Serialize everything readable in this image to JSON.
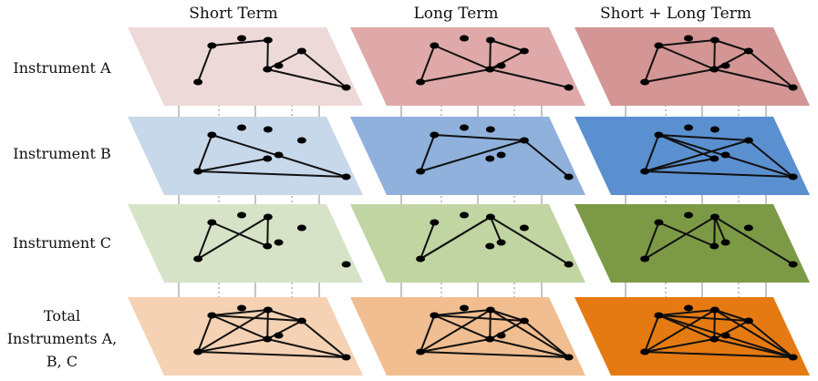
{
  "columns": [
    {
      "label": "Short Term"
    },
    {
      "label": "Long Term"
    },
    {
      "label": "Short + Long Term"
    }
  ],
  "rows": [
    {
      "label_lines": [
        "Instrument A"
      ]
    },
    {
      "label_lines": [
        "Instrument B"
      ]
    },
    {
      "label_lines": [
        "Instrument C"
      ]
    },
    {
      "label_lines": [
        "Total",
        "Instruments A,",
        "B, C"
      ]
    }
  ],
  "colors": {
    "row_a": [
      "#eed9d9",
      "#e0a9a9",
      "#d49595"
    ],
    "row_b": [
      "#c8d8eb",
      "#8fb1dc",
      "#5b90d0"
    ],
    "row_c": [
      "#d7e3c6",
      "#c0d5a2",
      "#7c9a45"
    ],
    "row_total": [
      "#f5d2b4",
      "#f1be91",
      "#e57a12"
    ],
    "edge": "#111111",
    "node": "#000000",
    "connector": "#888888"
  },
  "network": {
    "nodes": [
      "n1",
      "n2",
      "n3",
      "n4",
      "n5",
      "n6",
      "n7",
      "n8"
    ],
    "edges_by_panel": [
      [
        [
          [
            "n1",
            "n2"
          ],
          [
            "n2",
            "n5"
          ],
          [
            "n5",
            "n4"
          ],
          [
            "n4",
            "n6"
          ],
          [
            "n5",
            "n6"
          ],
          [
            "n1",
            "n3"
          ]
        ],
        [
          [
            "n2",
            "n4"
          ],
          [
            "n2",
            "n5"
          ],
          [
            "n5",
            "n4"
          ],
          [
            "n5",
            "n8"
          ],
          [
            "n5",
            "n6"
          ],
          [
            "n1",
            "n3"
          ],
          [
            "n3",
            "n5"
          ],
          [
            "n1",
            "n5"
          ]
        ],
        [
          [
            "n1",
            "n2"
          ],
          [
            "n2",
            "n4"
          ],
          [
            "n2",
            "n5"
          ],
          [
            "n5",
            "n4"
          ],
          [
            "n4",
            "n6"
          ],
          [
            "n5",
            "n6"
          ],
          [
            "n1",
            "n3"
          ],
          [
            "n3",
            "n5"
          ],
          [
            "n1",
            "n5"
          ],
          [
            "n5",
            "n8"
          ]
        ]
      ],
      [
        [
          [
            "n1",
            "n3"
          ],
          [
            "n3",
            "n5"
          ],
          [
            "n3",
            "n6"
          ],
          [
            "n1",
            "n6"
          ]
        ],
        [
          [
            "n1",
            "n4"
          ],
          [
            "n1",
            "n3"
          ],
          [
            "n3",
            "n4"
          ],
          [
            "n4",
            "n6"
          ]
        ],
        [
          [
            "n1",
            "n4"
          ],
          [
            "n1",
            "n3"
          ],
          [
            "n3",
            "n4"
          ],
          [
            "n3",
            "n5"
          ],
          [
            "n3",
            "n6"
          ],
          [
            "n1",
            "n6"
          ],
          [
            "n4",
            "n6"
          ],
          [
            "n1",
            "n5"
          ]
        ]
      ],
      [
        [
          [
            "n1",
            "n3"
          ],
          [
            "n1",
            "n5"
          ],
          [
            "n3",
            "n2"
          ],
          [
            "n2",
            "n5"
          ]
        ],
        [
          [
            "n1",
            "n3"
          ],
          [
            "n3",
            "n2"
          ],
          [
            "n2",
            "n6"
          ],
          [
            "n2",
            "n8"
          ],
          [
            "n3",
            "n2"
          ]
        ],
        [
          [
            "n1",
            "n3"
          ],
          [
            "n3",
            "n2"
          ],
          [
            "n2",
            "n5"
          ],
          [
            "n1",
            "n5"
          ],
          [
            "n2",
            "n6"
          ],
          [
            "n2",
            "n8"
          ]
        ]
      ],
      [
        [
          [
            "n1",
            "n2"
          ],
          [
            "n1",
            "n3"
          ],
          [
            "n1",
            "n4"
          ],
          [
            "n1",
            "n5"
          ],
          [
            "n2",
            "n4"
          ],
          [
            "n2",
            "n5"
          ],
          [
            "n3",
            "n5"
          ],
          [
            "n3",
            "n6"
          ],
          [
            "n4",
            "n5"
          ],
          [
            "n4",
            "n6"
          ],
          [
            "n5",
            "n6"
          ],
          [
            "n2",
            "n3"
          ]
        ],
        [
          [
            "n1",
            "n2"
          ],
          [
            "n1",
            "n3"
          ],
          [
            "n1",
            "n4"
          ],
          [
            "n1",
            "n5"
          ],
          [
            "n2",
            "n4"
          ],
          [
            "n2",
            "n5"
          ],
          [
            "n3",
            "n5"
          ],
          [
            "n3",
            "n6"
          ],
          [
            "n4",
            "n5"
          ],
          [
            "n4",
            "n6"
          ],
          [
            "n5",
            "n6"
          ],
          [
            "n2",
            "n3"
          ],
          [
            "n2",
            "n6"
          ]
        ],
        [
          [
            "n1",
            "n2"
          ],
          [
            "n1",
            "n3"
          ],
          [
            "n1",
            "n4"
          ],
          [
            "n1",
            "n5"
          ],
          [
            "n2",
            "n4"
          ],
          [
            "n2",
            "n5"
          ],
          [
            "n3",
            "n5"
          ],
          [
            "n3",
            "n6"
          ],
          [
            "n4",
            "n5"
          ],
          [
            "n4",
            "n6"
          ],
          [
            "n5",
            "n6"
          ],
          [
            "n2",
            "n3"
          ],
          [
            "n2",
            "n6"
          ],
          [
            "n1",
            "n6"
          ]
        ]
      ]
    ]
  }
}
